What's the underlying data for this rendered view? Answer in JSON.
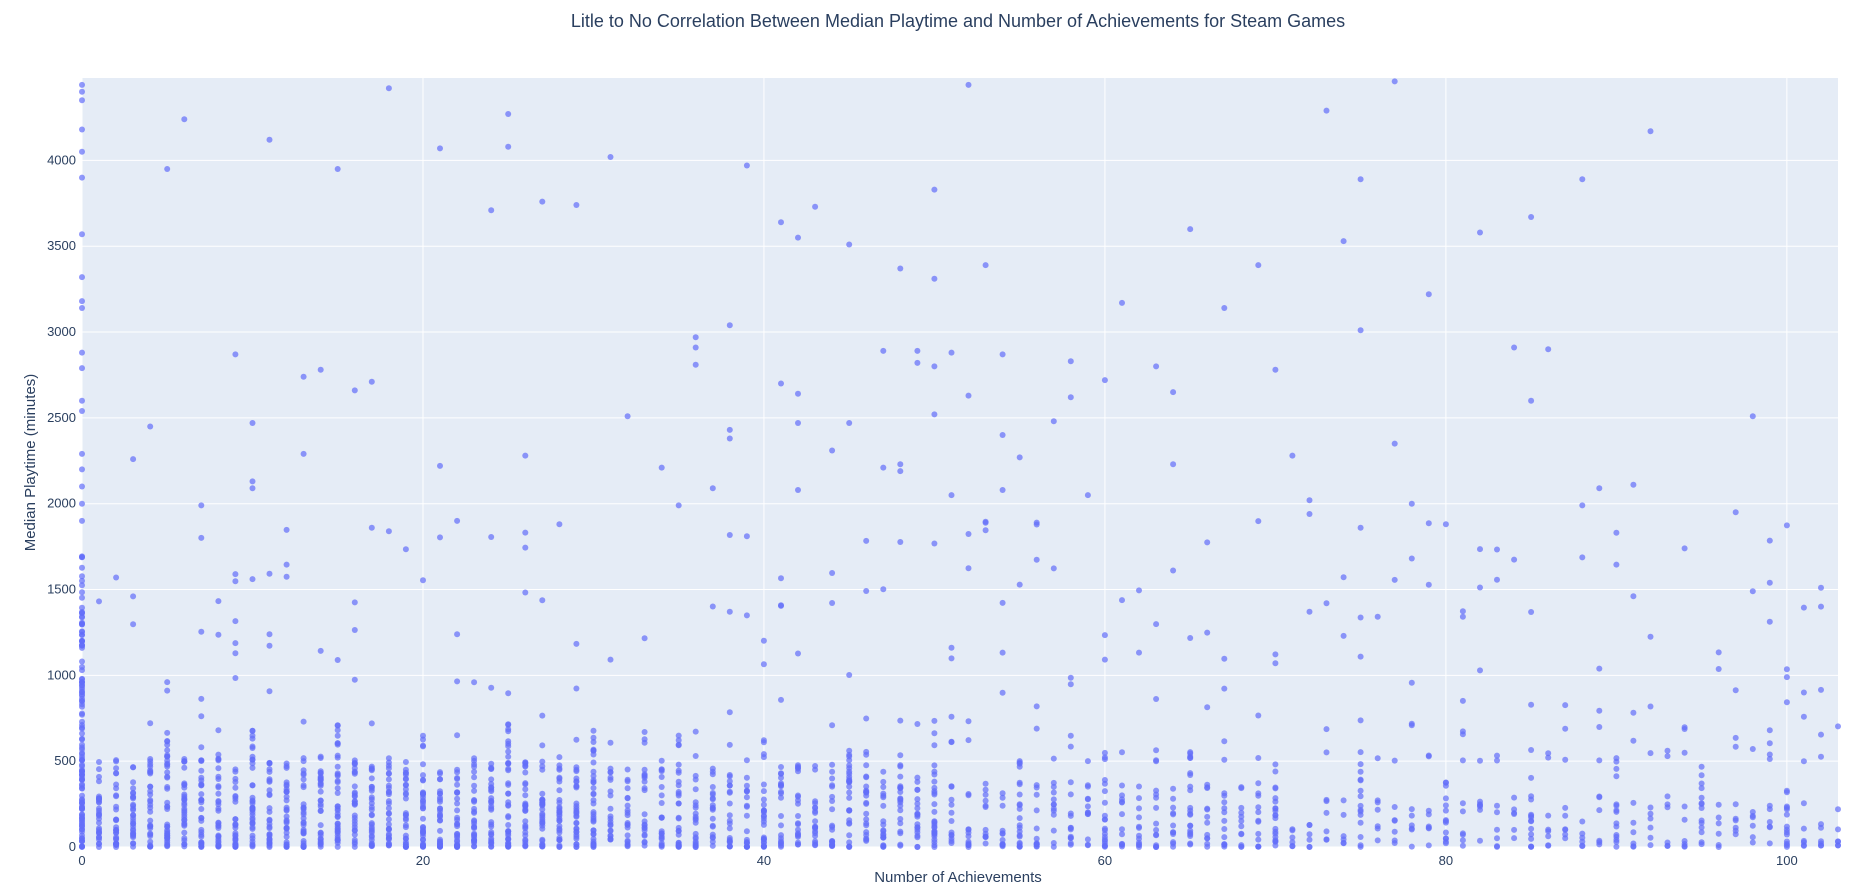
{
  "chart_data": {
    "type": "scatter",
    "title": "Litle to No Correlation Between Median Playtime and Number of Achievements for Steam Games",
    "xlabel": "Number of Achievements",
    "ylabel": "Median Playtime (minutes)",
    "xlim": [
      0,
      103
    ],
    "ylim": [
      0,
      4480
    ],
    "x_ticks": [
      0,
      20,
      40,
      60,
      80,
      100
    ],
    "y_ticks": [
      0,
      500,
      1000,
      1500,
      2000,
      2500,
      3000,
      3500,
      4000
    ],
    "grid": true,
    "legend": "none",
    "colors": {
      "plot_background": "#E5ECF6",
      "grid": "#FFFFFF",
      "marker": "#636EFA",
      "text": "#2a3f5f"
    },
    "outliers": [
      {
        "x": 0,
        "y": 4440
      },
      {
        "x": 0,
        "y": 4400
      },
      {
        "x": 0,
        "y": 4350
      },
      {
        "x": 0,
        "y": 4180
      },
      {
        "x": 0,
        "y": 4050
      },
      {
        "x": 0,
        "y": 3900
      },
      {
        "x": 0,
        "y": 3570
      },
      {
        "x": 0,
        "y": 3320
      },
      {
        "x": 0,
        "y": 3180
      },
      {
        "x": 0,
        "y": 3140
      },
      {
        "x": 0,
        "y": 2880
      },
      {
        "x": 0,
        "y": 2790
      },
      {
        "x": 0,
        "y": 2600
      },
      {
        "x": 0,
        "y": 2540
      },
      {
        "x": 0,
        "y": 2290
      },
      {
        "x": 0,
        "y": 2200
      },
      {
        "x": 0,
        "y": 2100
      },
      {
        "x": 0,
        "y": 2000
      },
      {
        "x": 0,
        "y": 1900
      },
      {
        "x": 5,
        "y": 3950
      },
      {
        "x": 6,
        "y": 4240
      },
      {
        "x": 11,
        "y": 4120
      },
      {
        "x": 15,
        "y": 3950
      },
      {
        "x": 18,
        "y": 4420
      },
      {
        "x": 21,
        "y": 4070
      },
      {
        "x": 24,
        "y": 3710
      },
      {
        "x": 25,
        "y": 4270
      },
      {
        "x": 25,
        "y": 4080
      },
      {
        "x": 27,
        "y": 3760
      },
      {
        "x": 29,
        "y": 3740
      },
      {
        "x": 31,
        "y": 4020
      },
      {
        "x": 39,
        "y": 3970
      },
      {
        "x": 41,
        "y": 3640
      },
      {
        "x": 42,
        "y": 3550
      },
      {
        "x": 43,
        "y": 3730
      },
      {
        "x": 45,
        "y": 3510
      },
      {
        "x": 50,
        "y": 3830
      },
      {
        "x": 52,
        "y": 4440
      },
      {
        "x": 53,
        "y": 3390
      },
      {
        "x": 65,
        "y": 3600
      },
      {
        "x": 73,
        "y": 4290
      },
      {
        "x": 74,
        "y": 3530
      },
      {
        "x": 75,
        "y": 3890
      },
      {
        "x": 77,
        "y": 4460
      },
      {
        "x": 82,
        "y": 3580
      },
      {
        "x": 85,
        "y": 3670
      },
      {
        "x": 88,
        "y": 3890
      },
      {
        "x": 92,
        "y": 4170
      },
      {
        "x": 3,
        "y": 2260
      },
      {
        "x": 4,
        "y": 2450
      },
      {
        "x": 9,
        "y": 2870
      },
      {
        "x": 10,
        "y": 2470
      },
      {
        "x": 10,
        "y": 2130
      },
      {
        "x": 10,
        "y": 2090
      },
      {
        "x": 13,
        "y": 2740
      },
      {
        "x": 13,
        "y": 2290
      },
      {
        "x": 14,
        "y": 2780
      },
      {
        "x": 16,
        "y": 2660
      },
      {
        "x": 17,
        "y": 2710
      },
      {
        "x": 21,
        "y": 2220
      },
      {
        "x": 7,
        "y": 1990
      },
      {
        "x": 18,
        "y": 1840
      },
      {
        "x": 22,
        "y": 1900
      },
      {
        "x": 26,
        "y": 2280
      },
      {
        "x": 32,
        "y": 2510
      },
      {
        "x": 34,
        "y": 2210
      },
      {
        "x": 36,
        "y": 2970
      },
      {
        "x": 36,
        "y": 2910
      },
      {
        "x": 36,
        "y": 2810
      },
      {
        "x": 38,
        "y": 3040
      },
      {
        "x": 38,
        "y": 2430
      },
      {
        "x": 38,
        "y": 2380
      },
      {
        "x": 41,
        "y": 2700
      },
      {
        "x": 42,
        "y": 2640
      },
      {
        "x": 42,
        "y": 2470
      },
      {
        "x": 44,
        "y": 2310
      },
      {
        "x": 45,
        "y": 2470
      },
      {
        "x": 47,
        "y": 2890
      },
      {
        "x": 48,
        "y": 3370
      },
      {
        "x": 49,
        "y": 2890
      },
      {
        "x": 49,
        "y": 2820
      },
      {
        "x": 50,
        "y": 3310
      },
      {
        "x": 50,
        "y": 2800
      },
      {
        "x": 50,
        "y": 2520
      },
      {
        "x": 51,
        "y": 2880
      },
      {
        "x": 52,
        "y": 2630
      },
      {
        "x": 54,
        "y": 2870
      },
      {
        "x": 54,
        "y": 2400
      },
      {
        "x": 55,
        "y": 2270
      },
      {
        "x": 57,
        "y": 2480
      },
      {
        "x": 58,
        "y": 2830
      },
      {
        "x": 58,
        "y": 2620
      },
      {
        "x": 60,
        "y": 2720
      },
      {
        "x": 61,
        "y": 3170
      },
      {
        "x": 63,
        "y": 2800
      },
      {
        "x": 64,
        "y": 2650
      },
      {
        "x": 64,
        "y": 2230
      },
      {
        "x": 67,
        "y": 3140
      },
      {
        "x": 69,
        "y": 3390
      },
      {
        "x": 70,
        "y": 2780
      },
      {
        "x": 71,
        "y": 2280
      },
      {
        "x": 75,
        "y": 3010
      },
      {
        "x": 77,
        "y": 2350
      },
      {
        "x": 79,
        "y": 3220
      },
      {
        "x": 84,
        "y": 2910
      },
      {
        "x": 85,
        "y": 2600
      },
      {
        "x": 86,
        "y": 2900
      },
      {
        "x": 98,
        "y": 2510
      },
      {
        "x": 28,
        "y": 1880
      },
      {
        "x": 35,
        "y": 1990
      },
      {
        "x": 37,
        "y": 2090
      },
      {
        "x": 42,
        "y": 2080
      },
      {
        "x": 47,
        "y": 2210
      },
      {
        "x": 48,
        "y": 2230
      },
      {
        "x": 48,
        "y": 2190
      },
      {
        "x": 51,
        "y": 2050
      },
      {
        "x": 54,
        "y": 2080
      },
      {
        "x": 56,
        "y": 1890
      },
      {
        "x": 59,
        "y": 2050
      },
      {
        "x": 72,
        "y": 2020
      },
      {
        "x": 72,
        "y": 1940
      },
      {
        "x": 78,
        "y": 2000
      },
      {
        "x": 80,
        "y": 1880
      },
      {
        "x": 88,
        "y": 1990
      },
      {
        "x": 89,
        "y": 2090
      },
      {
        "x": 91,
        "y": 2110
      },
      {
        "x": 97,
        "y": 1950
      }
    ]
  }
}
